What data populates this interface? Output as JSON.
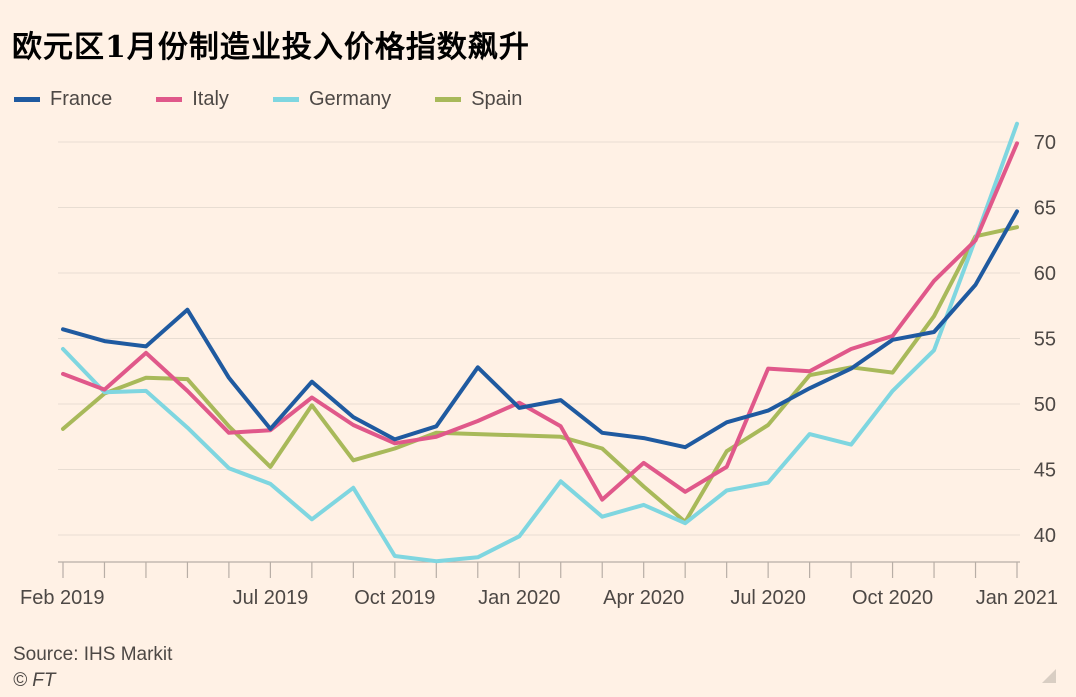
{
  "header": {
    "title": "欧元区1月份制造业投入价格指数飙升"
  },
  "footer": {
    "source": "Source: IHS Markit",
    "credit": "© FT"
  },
  "colors": {
    "France": "#1f5aa0",
    "Italy": "#e0588a",
    "Germany": "#7fd6e0",
    "Spain": "#a8b95a",
    "grid": "#e8ddd2",
    "text": "#4d4845"
  },
  "chart_data": {
    "type": "line",
    "title": "欧元区1月份制造业投入价格指数飙升",
    "xlabel": "",
    "ylabel": "",
    "ylim": [
      38,
      72
    ],
    "yticks": [
      40,
      45,
      50,
      55,
      60,
      65,
      70
    ],
    "x": [
      "Feb 2019",
      "Mar 2019",
      "Apr 2019",
      "May 2019",
      "Jun 2019",
      "Jul 2019",
      "Aug 2019",
      "Sep 2019",
      "Oct 2019",
      "Nov 2019",
      "Dec 2019",
      "Jan 2020",
      "Feb 2020",
      "Mar 2020",
      "Apr 2020",
      "May 2020",
      "Jun 2020",
      "Jul 2020",
      "Aug 2020",
      "Sep 2020",
      "Oct 2020",
      "Nov 2020",
      "Dec 2020",
      "Jan 2021"
    ],
    "xtick_labels": [
      {
        "index": 0,
        "label": "Feb 2019"
      },
      {
        "index": 5,
        "label": "Jul 2019"
      },
      {
        "index": 8,
        "label": "Oct 2019"
      },
      {
        "index": 11,
        "label": "Jan 2020"
      },
      {
        "index": 14,
        "label": "Apr 2020"
      },
      {
        "index": 17,
        "label": "Jul 2020"
      },
      {
        "index": 20,
        "label": "Oct 2020"
      },
      {
        "index": 23,
        "label": "Jan 2021"
      }
    ],
    "legend_position": "top-left",
    "series": [
      {
        "name": "France",
        "values": [
          55.7,
          54.8,
          54.4,
          57.2,
          52.0,
          48.1,
          51.7,
          49.0,
          47.3,
          48.3,
          52.8,
          49.7,
          50.3,
          47.8,
          47.4,
          46.7,
          48.6,
          49.5,
          51.2,
          52.7,
          54.9,
          55.5,
          59.1,
          64.7
        ]
      },
      {
        "name": "Italy",
        "values": [
          52.3,
          51.1,
          53.9,
          51.0,
          47.8,
          48.0,
          50.5,
          48.4,
          47.0,
          47.5,
          48.7,
          50.1,
          48.3,
          42.7,
          45.5,
          43.3,
          45.2,
          52.7,
          52.5,
          54.2,
          55.2,
          59.4,
          62.5,
          69.9
        ]
      },
      {
        "name": "Germany",
        "values": [
          54.2,
          50.9,
          51.0,
          48.2,
          45.1,
          43.9,
          41.2,
          43.6,
          38.4,
          38.0,
          38.3,
          39.9,
          44.1,
          41.4,
          42.3,
          40.9,
          43.4,
          44.0,
          47.7,
          46.9,
          51.0,
          54.1,
          62.6,
          71.4
        ]
      },
      {
        "name": "Spain",
        "values": [
          48.1,
          50.8,
          52.0,
          51.9,
          48.3,
          45.2,
          49.9,
          45.7,
          46.6,
          47.8,
          47.7,
          47.6,
          47.5,
          46.6,
          43.7,
          41.0,
          46.4,
          48.4,
          52.2,
          52.8,
          52.4,
          56.7,
          62.8,
          63.5
        ]
      }
    ]
  }
}
